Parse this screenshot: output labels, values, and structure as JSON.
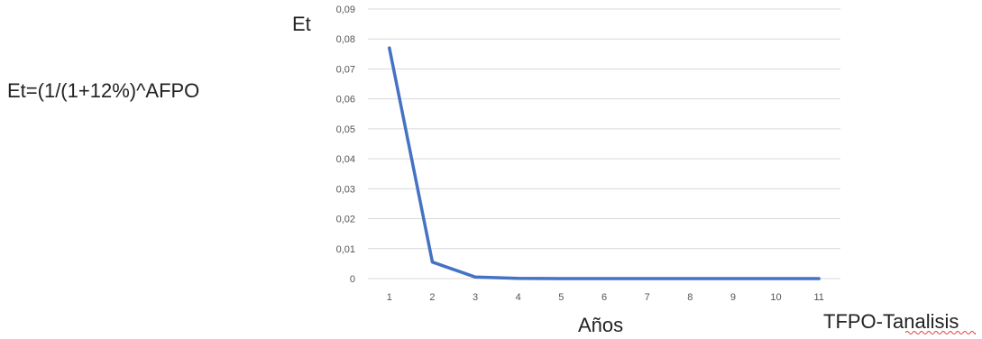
{
  "formula": "Et=(1/(1+12%)^AFPO",
  "note": "TFPO-Tanalisis",
  "chart_data": {
    "type": "line",
    "title": "",
    "xlabel": "Años",
    "ylabel": "Et",
    "categories": [
      "1",
      "2",
      "3",
      "4",
      "5",
      "6",
      "7",
      "8",
      "9",
      "10",
      "11"
    ],
    "y_ticks": [
      "0",
      "0,01",
      "0,02",
      "0,03",
      "0,04",
      "0,05",
      "0,06",
      "0,07",
      "0,08",
      "0,09"
    ],
    "ylim": [
      0,
      0.09
    ],
    "grid": true,
    "legend": "none",
    "series": [
      {
        "values": [
          0.077,
          0.0055,
          0.0005,
          0.0001,
          0,
          0,
          0,
          0,
          0,
          0,
          0
        ],
        "color": "#4472C4"
      }
    ],
    "colors": {
      "grid": "#d9d9d9",
      "axis": "#d9d9d9"
    }
  }
}
